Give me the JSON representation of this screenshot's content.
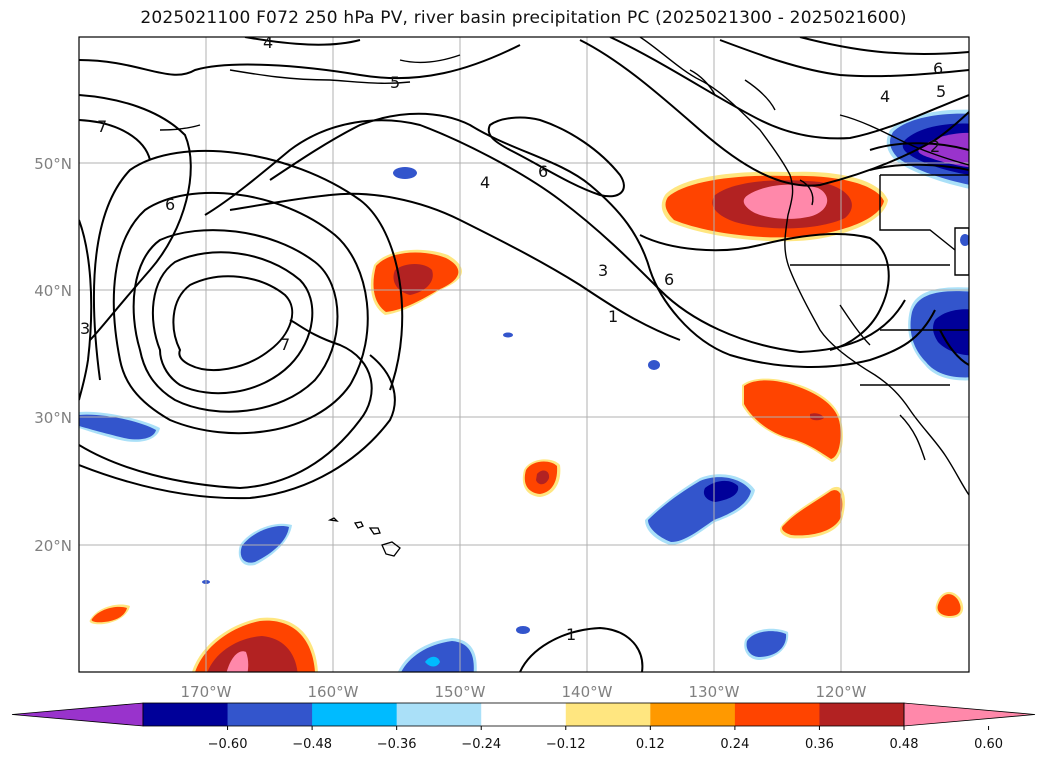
{
  "title": "2025021100 F072 250 hPa PV, river basin precipitation PC (2025021300 - 2025021600)",
  "lat_labels": [
    "50°N",
    "40°N",
    "30°N",
    "20°N"
  ],
  "lon_labels": [
    "170°W",
    "160°W",
    "150°W",
    "140°W",
    "130°W",
    "120°W"
  ],
  "colorbar": {
    "ticks": [
      "−0.60",
      "−0.48",
      "−0.36",
      "−0.24",
      "−0.12",
      "0.12",
      "0.24",
      "0.36",
      "0.48",
      "0.60"
    ],
    "colors": [
      "#9933cc",
      "#000099",
      "#3355cc",
      "#00bbff",
      "#aae0f8",
      "#ffffff",
      "#ffe680",
      "#ff9900",
      "#ff4400",
      "#b22222",
      "#ff88aa"
    ]
  },
  "contour_labels": [
    "4",
    "5",
    "7",
    "6",
    "4",
    "6",
    "3",
    "1",
    "6",
    "4",
    "5",
    "6",
    "2",
    "3",
    "7",
    "1"
  ]
}
